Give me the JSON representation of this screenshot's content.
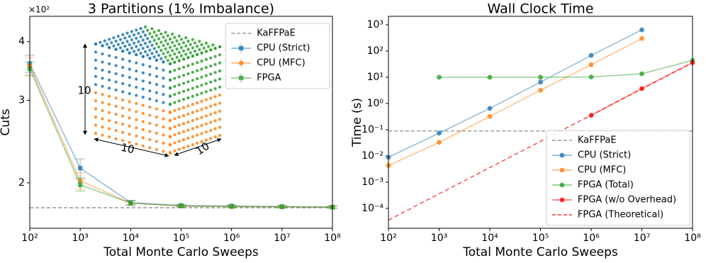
{
  "chart_data": [
    {
      "type": "line",
      "title": "3 Partitions (1% Imbalance)",
      "xlabel": "Total Monte Carlo Sweeps",
      "ylabel": "Cuts",
      "xscale": "log",
      "yscale": "log",
      "y_offset_label": "×10²",
      "xlim": [
        100,
        100000000
      ],
      "xticks": [
        {
          "value": 100,
          "label": "10²"
        },
        {
          "value": 1000,
          "label": "10³"
        },
        {
          "value": 10000,
          "label": "10⁴"
        },
        {
          "value": 100000,
          "label": "10⁵"
        },
        {
          "value": 1000000,
          "label": "10⁶"
        },
        {
          "value": 10000000,
          "label": "10⁷"
        },
        {
          "value": 100000000,
          "label": "10⁸"
        }
      ],
      "ylim": [
        1.6,
        4.53
      ],
      "yticks": [
        2,
        3,
        4
      ],
      "legend": "upper right",
      "reference_line": {
        "name": "KaFFPaE",
        "value": 1.77,
        "color": "#808080"
      },
      "inset_labels": [
        "10",
        "10",
        "10"
      ],
      "series": [
        {
          "name": "CPU (Strict)",
          "color": "#1f77b4",
          "marker": "s",
          "x": [
            100,
            1000,
            10000,
            100000,
            1000000,
            10000000,
            100000000
          ],
          "values": [
            3.59,
            2.15,
            1.815,
            1.79,
            1.785,
            1.78,
            1.775
          ],
          "errors": [
            0.15,
            0.1,
            0.02,
            0.01,
            0.01,
            0.01,
            0.01
          ]
        },
        {
          "name": "CPU (MFC)",
          "color": "#ff7f0e",
          "marker": "o",
          "x": [
            100,
            1000,
            10000,
            100000,
            1000000,
            10000000,
            100000000
          ],
          "values": [
            3.55,
            2.02,
            1.81,
            1.785,
            1.78,
            1.778,
            1.775
          ],
          "errors": [
            0.15,
            0.08,
            0.02,
            0.01,
            0.01,
            0.01,
            0.01
          ]
        },
        {
          "name": "FPGA",
          "color": "#2ca02c",
          "marker": "s",
          "x": [
            100,
            1000,
            10000,
            100000,
            1000000,
            10000000,
            100000000
          ],
          "values": [
            3.5,
            1.98,
            1.81,
            1.785,
            1.78,
            1.778,
            1.775
          ],
          "errors": [
            0.12,
            0.06,
            0.02,
            0.01,
            0.01,
            0.01,
            0.01
          ]
        }
      ]
    },
    {
      "type": "line",
      "title": "Wall Clock Time",
      "xlabel": "Total Monte Carlo Sweeps",
      "ylabel": "Time (s)",
      "xscale": "log",
      "yscale": "log",
      "xlim": [
        100,
        100000000
      ],
      "xticks": [
        {
          "value": 100,
          "label": "10²"
        },
        {
          "value": 1000,
          "label": "10³"
        },
        {
          "value": 10000,
          "label": "10⁴"
        },
        {
          "value": 100000,
          "label": "10⁵"
        },
        {
          "value": 1000000,
          "label": "10⁶"
        },
        {
          "value": 10000000,
          "label": "10⁷"
        },
        {
          "value": 100000000,
          "label": "10⁸"
        }
      ],
      "ylim": [
        1.75e-05,
        2100
      ],
      "yticks": [
        {
          "value": 0.0001,
          "label": "10⁻⁴"
        },
        {
          "value": 0.001,
          "label": "10⁻³"
        },
        {
          "value": 0.01,
          "label": "10⁻²"
        },
        {
          "value": 0.1,
          "label": "10⁻¹"
        },
        {
          "value": 1,
          "label": "10⁰"
        },
        {
          "value": 10,
          "label": "10¹"
        },
        {
          "value": 100,
          "label": "10²"
        },
        {
          "value": 1000,
          "label": "10³"
        }
      ],
      "legend": "lower right",
      "reference_line": {
        "name": "KaFFPaE",
        "value": 0.089,
        "color": "#808080"
      },
      "series": [
        {
          "name": "CPU (Strict)",
          "color": "#1f77b4",
          "marker": "o",
          "x": [
            100,
            1000,
            10000,
            100000,
            1000000,
            10000000
          ],
          "values": [
            0.0089,
            0.074,
            0.65,
            6.5,
            68,
            640
          ]
        },
        {
          "name": "CPU (MFC)",
          "color": "#ff7f0e",
          "marker": "o",
          "x": [
            100,
            1000,
            10000,
            100000,
            1000000,
            10000000
          ],
          "values": [
            0.0043,
            0.033,
            0.32,
            3.2,
            30,
            300
          ]
        },
        {
          "name": "FPGA (Total)",
          "color": "#2ca02c",
          "marker": "o",
          "x": [
            1000,
            10000,
            100000,
            1000000,
            10000000,
            100000000
          ],
          "values": [
            10,
            10,
            10,
            10.2,
            13.5,
            44
          ]
        },
        {
          "name": "FPGA (w/o Overhead)",
          "color": "#ff0000",
          "marker": "o",
          "x": [
            1000000,
            10000000,
            100000000
          ],
          "values": [
            0.35,
            3.7,
            36
          ]
        },
        {
          "name": "FPGA (Theoretical)",
          "color": "#ff0000",
          "marker": "none",
          "linestyle": "dashed",
          "x": [
            100,
            100000000
          ],
          "values": [
            3.6e-05,
            36
          ]
        }
      ]
    }
  ]
}
